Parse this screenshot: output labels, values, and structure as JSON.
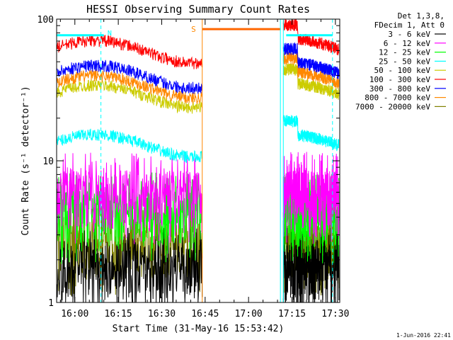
{
  "chart_data": {
    "type": "line",
    "title": "HESSI Observing Summary Count Rates",
    "xlabel": "Start Time (31-May-16 15:53:42)",
    "ylabel": "Count Rate (s⁻¹ detector⁻¹)",
    "yscale": "log",
    "ylim": [
      1,
      100
    ],
    "xlim": [
      "15:53:42",
      "17:31:30"
    ],
    "xticks": [
      "16:00",
      "16:15",
      "16:30",
      "16:45",
      "17:00",
      "17:15",
      "17:30"
    ],
    "yticks": [
      "1",
      "10",
      "100"
    ],
    "legend_position": "right",
    "legend_header": [
      "Det 1,3,8,",
      "FDecim 1, Att 0"
    ],
    "grid": false,
    "gap": {
      "from": "16:44",
      "to": "17:11"
    },
    "series": [
      {
        "name": "3 - 6 keV",
        "color": "#000000",
        "level_before": 1.8,
        "level_after": 1.8
      },
      {
        "name": "6 - 12 keV",
        "color": "#ff00ff",
        "level_before": 6.0,
        "level_after": 6.0
      },
      {
        "name": "12 - 25 keV",
        "color": "#00ff00",
        "level_before": 4.3,
        "level_after": 4.3
      },
      {
        "name": "25 - 50 keV",
        "color": "#00ffff",
        "level_before": 13,
        "level_after": 13
      },
      {
        "name": "50 - 100 keV",
        "color": "#cccc00",
        "level_before": 29,
        "level_after": 30
      },
      {
        "name": "100 - 300 keV",
        "color": "#ff0000",
        "level_before": 60,
        "level_after": 62
      },
      {
        "name": "300 - 800 keV",
        "color": "#0000ff",
        "level_before": 40,
        "level_after": 42
      },
      {
        "name": "800 - 7000 keV",
        "color": "#ff8800",
        "level_before": 34,
        "level_after": 36
      },
      {
        "name": "7000 - 20000 keV",
        "color": "#808000",
        "level_before": 2.6,
        "level_after": 2.6
      }
    ],
    "annotations": [
      {
        "text": "N",
        "color": "#00ffff"
      },
      {
        "text": "S",
        "color": "#ff8800"
      }
    ],
    "footer": "1-Jun-2016 22:41"
  }
}
